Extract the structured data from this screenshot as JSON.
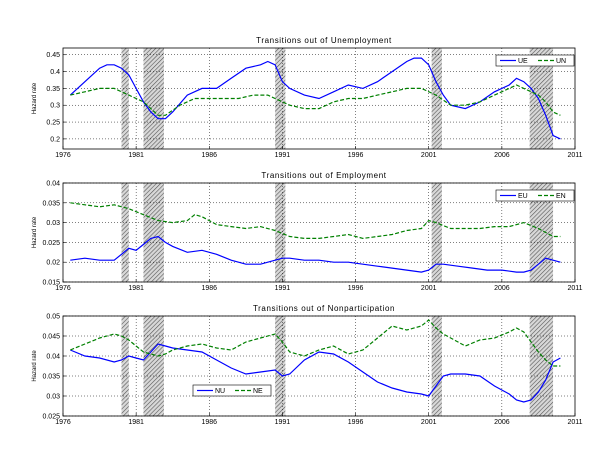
{
  "chart_data": [
    {
      "type": "line",
      "title": "Transitions out of Unemployment",
      "xlabel": "",
      "ylabel": "Hazard rate",
      "xlim": [
        1976,
        2011
      ],
      "ylim": [
        0.17,
        0.47
      ],
      "x_ticks": [
        "1976",
        "1981",
        "1986",
        "1991",
        "1996",
        "2001",
        "2006",
        "2011"
      ],
      "y_ticks": [
        "0.2",
        "0.25",
        "0.3",
        "0.35",
        "0.4",
        "0.45"
      ],
      "legend_position": "top-right",
      "recessions": [
        [
          1980.0,
          1980.5
        ],
        [
          1981.5,
          1982.9
        ],
        [
          1990.5,
          1991.2
        ],
        [
          2001.2,
          2001.9
        ],
        [
          2007.9,
          2009.5
        ]
      ],
      "grid": true,
      "series": [
        {
          "name": "UE",
          "color": "#0000ff",
          "dash": "solid",
          "x": [
            1976.5,
            1977.5,
            1978.5,
            1979.0,
            1979.5,
            1980.0,
            1980.5,
            1981.0,
            1981.5,
            1982.0,
            1982.5,
            1983.0,
            1983.5,
            1984.5,
            1985.5,
            1986.5,
            1987.5,
            1988.5,
            1989.5,
            1990.0,
            1990.5,
            1991.0,
            1991.5,
            1992.5,
            1993.5,
            1994.5,
            1995.5,
            1996.5,
            1997.5,
            1998.5,
            1999.5,
            2000.0,
            2000.5,
            2001.0,
            2001.5,
            2002.0,
            2002.5,
            2003.5,
            2004.5,
            2005.5,
            2006.5,
            2007.0,
            2007.5,
            2008.0,
            2008.5,
            2009.0,
            2009.5,
            2010.0
          ],
          "y": [
            0.33,
            0.37,
            0.41,
            0.42,
            0.42,
            0.41,
            0.39,
            0.35,
            0.31,
            0.28,
            0.26,
            0.26,
            0.28,
            0.33,
            0.35,
            0.35,
            0.38,
            0.41,
            0.42,
            0.43,
            0.42,
            0.37,
            0.35,
            0.33,
            0.32,
            0.34,
            0.36,
            0.35,
            0.37,
            0.4,
            0.43,
            0.44,
            0.44,
            0.42,
            0.37,
            0.33,
            0.3,
            0.29,
            0.31,
            0.34,
            0.36,
            0.38,
            0.37,
            0.35,
            0.32,
            0.27,
            0.21,
            0.2
          ]
        },
        {
          "name": "UN",
          "color": "#008000",
          "dash": "dashed",
          "x": [
            1976.5,
            1977.5,
            1978.5,
            1979.5,
            1980.0,
            1980.5,
            1981.0,
            1981.5,
            1982.0,
            1982.5,
            1983.0,
            1984.0,
            1985.0,
            1986.0,
            1987.0,
            1988.0,
            1989.0,
            1990.0,
            1990.5,
            1991.5,
            1992.5,
            1993.5,
            1994.5,
            1995.5,
            1996.5,
            1997.5,
            1998.5,
            1999.5,
            2000.5,
            2001.5,
            2002.5,
            2003.5,
            2004.5,
            2005.5,
            2006.5,
            2007.0,
            2007.5,
            2008.0,
            2008.5,
            2009.0,
            2009.5,
            2010.0
          ],
          "y": [
            0.33,
            0.34,
            0.35,
            0.35,
            0.34,
            0.33,
            0.32,
            0.31,
            0.29,
            0.27,
            0.27,
            0.3,
            0.32,
            0.32,
            0.32,
            0.32,
            0.33,
            0.33,
            0.32,
            0.3,
            0.29,
            0.29,
            0.31,
            0.32,
            0.32,
            0.33,
            0.34,
            0.35,
            0.35,
            0.33,
            0.3,
            0.3,
            0.31,
            0.33,
            0.35,
            0.36,
            0.35,
            0.34,
            0.33,
            0.31,
            0.28,
            0.27
          ]
        }
      ]
    },
    {
      "type": "line",
      "title": "Transitions out of Employment",
      "xlabel": "",
      "ylabel": "Hazard rate",
      "xlim": [
        1976,
        2011
      ],
      "ylim": [
        0.015,
        0.04
      ],
      "x_ticks": [
        "1976",
        "1981",
        "1986",
        "1991",
        "1996",
        "2001",
        "2006",
        "2011"
      ],
      "y_ticks": [
        "0.015",
        "0.02",
        "0.025",
        "0.03",
        "0.035",
        "0.04"
      ],
      "legend_position": "top-right",
      "recessions": [
        [
          1980.0,
          1980.5
        ],
        [
          1981.5,
          1982.9
        ],
        [
          1990.5,
          1991.2
        ],
        [
          2001.2,
          2001.9
        ],
        [
          2007.9,
          2009.5
        ]
      ],
      "grid": true,
      "series": [
        {
          "name": "EU",
          "color": "#0000ff",
          "dash": "solid",
          "x": [
            1976.5,
            1977.5,
            1978.5,
            1979.5,
            1980.0,
            1980.5,
            1981.0,
            1981.5,
            1982.0,
            1982.5,
            1983.0,
            1983.5,
            1984.5,
            1985.5,
            1986.5,
            1987.5,
            1988.5,
            1989.5,
            1990.5,
            1991.0,
            1991.5,
            1992.5,
            1993.5,
            1994.5,
            1995.5,
            1996.5,
            1997.5,
            1998.5,
            1999.5,
            2000.5,
            2001.0,
            2001.5,
            2002.0,
            2003.0,
            2004.0,
            2005.0,
            2006.0,
            2007.0,
            2007.5,
            2008.0,
            2008.5,
            2009.0,
            2009.5,
            2010.0
          ],
          "y": [
            0.0205,
            0.021,
            0.0205,
            0.0205,
            0.022,
            0.0235,
            0.023,
            0.0245,
            0.026,
            0.0265,
            0.025,
            0.024,
            0.0225,
            0.023,
            0.022,
            0.0205,
            0.0195,
            0.0195,
            0.0205,
            0.021,
            0.021,
            0.0205,
            0.0205,
            0.02,
            0.02,
            0.0195,
            0.019,
            0.0185,
            0.018,
            0.0175,
            0.018,
            0.0195,
            0.0195,
            0.019,
            0.0185,
            0.018,
            0.018,
            0.0175,
            0.0175,
            0.018,
            0.0195,
            0.021,
            0.0205,
            0.02
          ]
        },
        {
          "name": "EN",
          "color": "#008000",
          "dash": "dashed",
          "x": [
            1976.5,
            1977.5,
            1978.5,
            1979.5,
            1980.5,
            1981.5,
            1982.5,
            1983.5,
            1984.5,
            1985.0,
            1985.5,
            1986.5,
            1987.5,
            1988.5,
            1989.5,
            1990.5,
            1991.5,
            1992.5,
            1993.5,
            1994.5,
            1995.5,
            1996.5,
            1997.5,
            1998.5,
            1999.5,
            2000.5,
            2001.0,
            2001.5,
            2002.5,
            2003.5,
            2004.5,
            2005.5,
            2006.5,
            2007.5,
            2008.5,
            2009.5,
            2010.0
          ],
          "y": [
            0.035,
            0.0345,
            0.034,
            0.0345,
            0.0335,
            0.032,
            0.0305,
            0.03,
            0.0305,
            0.032,
            0.0315,
            0.0295,
            0.029,
            0.0285,
            0.029,
            0.028,
            0.0265,
            0.026,
            0.026,
            0.0265,
            0.027,
            0.026,
            0.0265,
            0.027,
            0.028,
            0.0285,
            0.0305,
            0.03,
            0.0285,
            0.0285,
            0.0285,
            0.029,
            0.029,
            0.03,
            0.0285,
            0.0265,
            0.0265
          ]
        }
      ]
    },
    {
      "type": "line",
      "title": "Transitions out of Nonparticipation",
      "xlabel": "",
      "ylabel": "Hazard rate",
      "xlim": [
        1976,
        2011
      ],
      "ylim": [
        0.025,
        0.05
      ],
      "x_ticks": [
        "1976",
        "1981",
        "1986",
        "1991",
        "1996",
        "2001",
        "2006",
        "2011"
      ],
      "y_ticks": [
        "0.025",
        "0.03",
        "0.035",
        "0.04",
        "0.045",
        "0.05"
      ],
      "legend_position": "bottom-left",
      "recessions": [
        [
          1980.0,
          1980.5
        ],
        [
          1981.5,
          1982.9
        ],
        [
          1990.5,
          1991.2
        ],
        [
          2001.2,
          2001.9
        ],
        [
          2007.9,
          2009.5
        ]
      ],
      "grid": true,
      "series": [
        {
          "name": "NU",
          "color": "#0000ff",
          "dash": "solid",
          "x": [
            1976.5,
            1977.5,
            1978.5,
            1979.5,
            1980.0,
            1980.5,
            1981.0,
            1981.5,
            1982.0,
            1982.5,
            1983.0,
            1983.5,
            1984.5,
            1985.5,
            1986.5,
            1987.5,
            1988.5,
            1989.5,
            1990.5,
            1991.0,
            1991.5,
            1992.5,
            1993.5,
            1994.5,
            1995.5,
            1996.5,
            1997.5,
            1998.5,
            1999.5,
            2000.5,
            2001.0,
            2001.5,
            2002.0,
            2002.5,
            2003.5,
            2004.5,
            2005.5,
            2006.5,
            2007.0,
            2007.5,
            2008.0,
            2008.5,
            2009.0,
            2009.5,
            2010.0
          ],
          "y": [
            0.0415,
            0.04,
            0.0395,
            0.0385,
            0.039,
            0.04,
            0.0395,
            0.039,
            0.041,
            0.043,
            0.0425,
            0.042,
            0.0415,
            0.041,
            0.039,
            0.037,
            0.0355,
            0.036,
            0.0365,
            0.035,
            0.0355,
            0.039,
            0.041,
            0.0405,
            0.0385,
            0.036,
            0.0335,
            0.032,
            0.031,
            0.0305,
            0.03,
            0.0325,
            0.035,
            0.0355,
            0.0355,
            0.035,
            0.0325,
            0.0305,
            0.029,
            0.0285,
            0.029,
            0.031,
            0.034,
            0.0385,
            0.0395
          ]
        },
        {
          "name": "NE",
          "color": "#008000",
          "dash": "dashed",
          "x": [
            1976.5,
            1977.5,
            1978.5,
            1979.5,
            1980.0,
            1980.5,
            1981.0,
            1981.5,
            1982.0,
            1982.5,
            1983.0,
            1983.5,
            1984.5,
            1985.5,
            1986.5,
            1987.5,
            1988.5,
            1989.5,
            1990.5,
            1991.0,
            1991.5,
            1992.5,
            1993.5,
            1994.5,
            1995.5,
            1996.5,
            1997.5,
            1998.5,
            1999.5,
            2000.5,
            2001.0,
            2001.5,
            2002.0,
            2002.5,
            2003.5,
            2004.5,
            2005.5,
            2006.5,
            2007.0,
            2007.5,
            2008.0,
            2008.5,
            2009.0,
            2009.5,
            2010.0
          ],
          "y": [
            0.0415,
            0.043,
            0.0445,
            0.0455,
            0.045,
            0.044,
            0.0425,
            0.041,
            0.0405,
            0.04,
            0.0405,
            0.0415,
            0.0425,
            0.043,
            0.042,
            0.0415,
            0.0435,
            0.0445,
            0.0455,
            0.0435,
            0.041,
            0.04,
            0.0415,
            0.0425,
            0.0405,
            0.0415,
            0.0445,
            0.0475,
            0.0465,
            0.0475,
            0.049,
            0.047,
            0.0455,
            0.0445,
            0.0425,
            0.044,
            0.0445,
            0.046,
            0.047,
            0.046,
            0.0435,
            0.041,
            0.039,
            0.0375,
            0.0375
          ]
        }
      ]
    }
  ]
}
